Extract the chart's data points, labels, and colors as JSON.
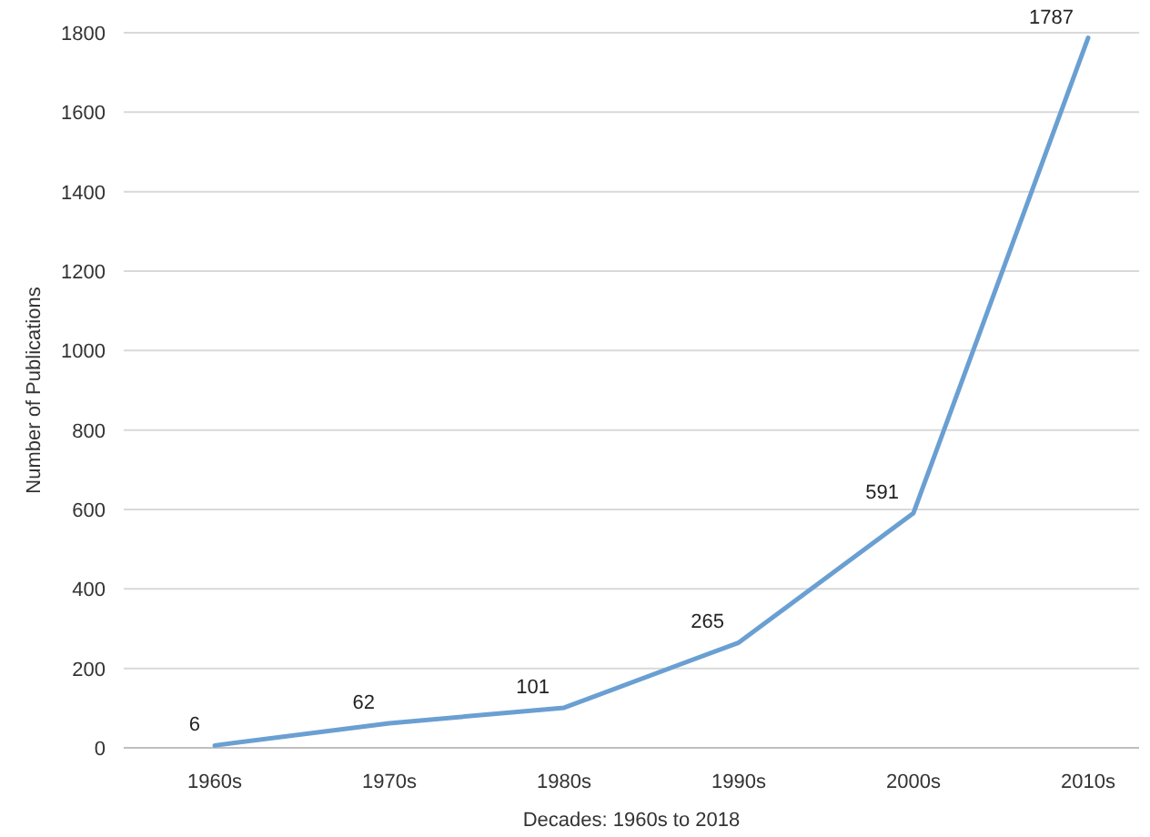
{
  "chart_data": {
    "type": "line",
    "xlabel": "Decades: 1960s to 2018",
    "ylabel": "Number of Publications",
    "categories": [
      "1960s",
      "1970s",
      "1980s",
      "1990s",
      "2000s",
      "2010s"
    ],
    "series": [
      {
        "color": "#6a9fd2",
        "values": [
          6,
          62,
          101,
          265,
          591,
          1787
        ]
      }
    ],
    "ylim": [
      0,
      1800
    ],
    "yticks": [
      0,
      200,
      400,
      600,
      800,
      1000,
      1200,
      1400,
      1600,
      1800
    ],
    "grid": "y",
    "data_labels": true,
    "marker": "none"
  }
}
